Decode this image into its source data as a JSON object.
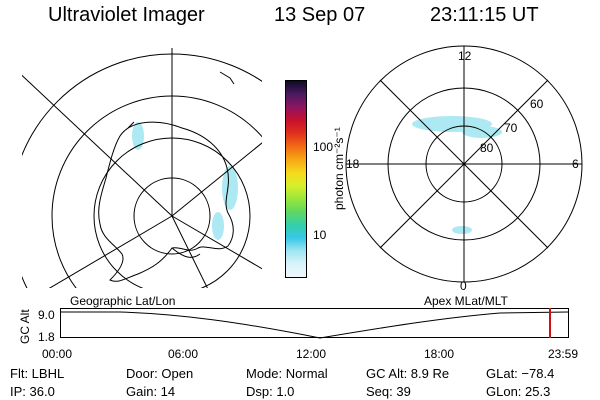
{
  "header": {
    "title": "Ultraviolet Imager",
    "date": "13 Sep 07",
    "time": "23:11:15 UT"
  },
  "colorbar": {
    "unit_label": "photon cm⁻²s⁻¹",
    "ticks": [
      "100",
      "10"
    ],
    "colors": [
      "#0b0b26",
      "#4a1a60",
      "#8b1660",
      "#c8102e",
      "#e0301e",
      "#f26a16",
      "#f7a614",
      "#f6d81c",
      "#d8ef2a",
      "#9be63a",
      "#5fd860",
      "#35cfa8",
      "#36c8e8",
      "#9fe6f2",
      "#d8f4f8",
      "#eef8fa"
    ]
  },
  "left_map": {
    "label": "Geographic Lat/Lon"
  },
  "right_map": {
    "label": "Apex MLat/MLT",
    "lat_labels": [
      "60",
      "70",
      "80"
    ],
    "mlt_labels": {
      "top": "12",
      "left": "18",
      "right": "6",
      "bottom": "0"
    }
  },
  "altitude_panel": {
    "axis_label": "GC Alt",
    "y_ticks": [
      "9.0",
      "1.8"
    ],
    "x_ticks": [
      "00:00",
      "06:00",
      "12:00",
      "18:00",
      "23:59"
    ],
    "marker_color": "#d01010"
  },
  "footer": {
    "filter": "Flt: LBHL",
    "door": "Door: Open",
    "mode": "Mode: Normal",
    "gc_alt": "GC Alt: 8.9 Re",
    "glat": "GLat: −78.4",
    "ip": "IP: 36.0",
    "gain": "Gain: 14",
    "dsp": "Dsp:     1.0",
    "seq": "Seq: 39",
    "glon": "GLon:  25.3"
  }
}
